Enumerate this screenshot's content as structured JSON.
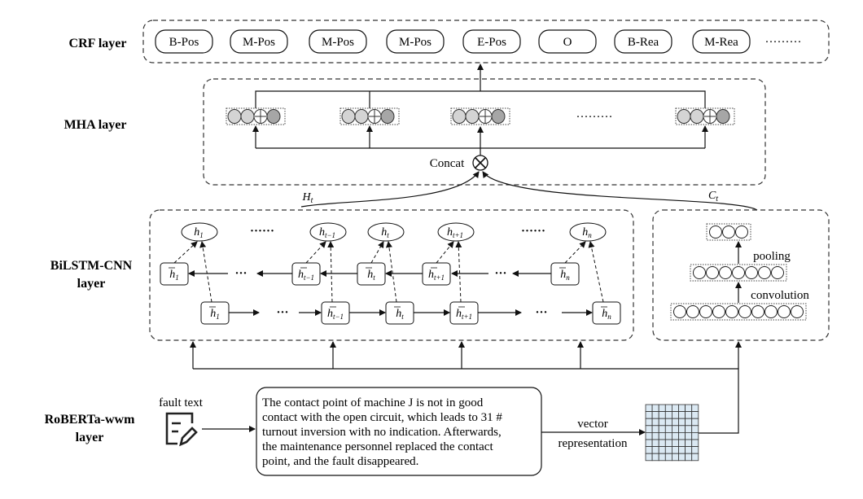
{
  "layers": {
    "crf": "CRF layer",
    "mha": "MHA layer",
    "bilstm_line1": "BiLSTM-CNN",
    "bilstm_line2": "layer",
    "roberta_line1": "RoBERTa-wwm",
    "roberta_line2": "layer"
  },
  "crf_tags": [
    "B-Pos",
    "M-Pos",
    "M-Pos",
    "M-Pos",
    "E-Pos",
    "O",
    "B-Rea",
    "M-Rea"
  ],
  "crf_ellipsis": "·········",
  "mha": {
    "concat": "Concat",
    "ellipsis": "·········"
  },
  "flows": {
    "ht": "H",
    "ht_sub": "t",
    "ct": "C",
    "ct_sub": "t"
  },
  "bilstm": {
    "outputs": [
      {
        "sub": "1"
      },
      {
        "sub": "t−1"
      },
      {
        "sub": "t"
      },
      {
        "sub": "t+1"
      },
      {
        "sub": "n"
      }
    ],
    "backward": [
      {
        "sub": "1"
      },
      {
        "sub": "t−1"
      },
      {
        "sub": "t"
      },
      {
        "sub": "t+1"
      },
      {
        "sub": "n"
      }
    ],
    "forward": [
      {
        "sub": "1"
      },
      {
        "sub": "t−1"
      },
      {
        "sub": "t"
      },
      {
        "sub": "t+1"
      },
      {
        "sub": "n"
      }
    ],
    "symbol": "h",
    "dots_long": "······",
    "dots_short": "···"
  },
  "cnn": {
    "pooling": "pooling",
    "convolution": "convolution"
  },
  "input": {
    "fault_text_label": "fault text",
    "icon": "document-edit-icon",
    "sentence_lines": [
      "The contact point of machine J is not in good",
      "contact with the open circuit, which leads to 31 #",
      "turnout inversion with no indication. Afterwards,",
      "the maintenance personnel replaced the contact",
      "point, and the fault disappeared."
    ],
    "vector_line1": "vector",
    "vector_line2": "representation"
  },
  "colors": {
    "circle_light": "#d4d4d4",
    "circle_dark": "#a6a6a6",
    "matrix_cell": "#dbe9f3"
  }
}
